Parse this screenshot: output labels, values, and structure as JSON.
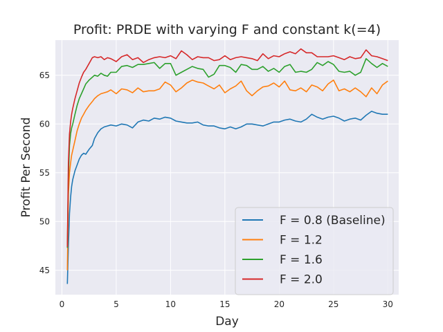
{
  "chart_data": {
    "type": "line",
    "title": "Profit: PRDE with varying F and constant k(=4)",
    "xlabel": "Day",
    "ylabel": "Profit Per Second",
    "xlim": [
      -0.6,
      31.0
    ],
    "ylim": [
      42.5,
      68.6
    ],
    "xticks": [
      0,
      5,
      10,
      15,
      20,
      25,
      30
    ],
    "yticks": [
      45,
      50,
      55,
      60,
      65
    ],
    "grid": true,
    "legend_position": "lower-right",
    "series": [
      {
        "name": "F = 0.8 (Baseline)",
        "color": "#1f77b4",
        "x": [
          0.5,
          0.6,
          0.7,
          0.8,
          0.9,
          1.0,
          1.2,
          1.4,
          1.6,
          1.8,
          2.0,
          2.2,
          2.5,
          2.8,
          3.0,
          3.3,
          3.6,
          3.9,
          4.2,
          4.5,
          5,
          5.5,
          6,
          6.5,
          7,
          7.5,
          8,
          8.5,
          9,
          9.5,
          10,
          10.5,
          11,
          11.5,
          12,
          12.5,
          13,
          13.5,
          14,
          14.5,
          15,
          15.5,
          16,
          16.5,
          17,
          17.5,
          18,
          18.5,
          19,
          19.5,
          20,
          20.5,
          21,
          21.5,
          22,
          22.5,
          23,
          23.5,
          24,
          24.5,
          25,
          25.5,
          26,
          26.5,
          27,
          27.5,
          28,
          28.5,
          29,
          29.5,
          30
        ],
        "values": [
          43.6,
          47.5,
          50.8,
          52.5,
          53.6,
          54.3,
          55.2,
          55.8,
          56.4,
          56.8,
          57.0,
          56.9,
          57.4,
          57.8,
          58.5,
          59.1,
          59.5,
          59.7,
          59.8,
          59.9,
          59.8,
          60.0,
          59.9,
          59.6,
          60.2,
          60.4,
          60.3,
          60.6,
          60.5,
          60.7,
          60.6,
          60.3,
          60.2,
          60.1,
          60.1,
          60.2,
          59.9,
          59.8,
          59.8,
          59.6,
          59.5,
          59.7,
          59.5,
          59.7,
          60.0,
          60.0,
          59.9,
          59.8,
          60.0,
          60.2,
          60.2,
          60.4,
          60.5,
          60.3,
          60.2,
          60.5,
          61.0,
          60.7,
          60.5,
          60.7,
          60.8,
          60.6,
          60.3,
          60.5,
          60.6,
          60.4,
          60.9,
          61.3,
          61.1,
          61.0,
          61.0
        ]
      },
      {
        "name": "F = 1.2",
        "color": "#ff7f0e",
        "x": [
          0.5,
          0.6,
          0.7,
          0.8,
          0.9,
          1.0,
          1.2,
          1.4,
          1.6,
          1.8,
          2.0,
          2.2,
          2.5,
          2.8,
          3.0,
          3.3,
          3.6,
          3.9,
          4.2,
          4.5,
          5,
          5.5,
          6,
          6.5,
          7,
          7.5,
          8,
          8.5,
          9,
          9.5,
          10,
          10.5,
          11,
          11.5,
          12,
          12.5,
          13,
          13.5,
          14,
          14.5,
          15,
          15.5,
          16,
          16.5,
          17,
          17.5,
          18,
          18.5,
          19,
          19.5,
          20,
          20.5,
          21,
          21.5,
          22,
          22.5,
          23,
          23.5,
          24,
          24.5,
          25,
          25.5,
          26,
          26.5,
          27,
          27.5,
          28,
          28.5,
          29,
          29.5,
          30
        ],
        "values": [
          45.0,
          52.8,
          55.0,
          56.0,
          56.8,
          57.3,
          58.3,
          59.3,
          60.0,
          60.6,
          61.0,
          61.4,
          61.9,
          62.3,
          62.6,
          62.9,
          63.1,
          63.2,
          63.3,
          63.5,
          63.1,
          63.6,
          63.5,
          63.2,
          63.7,
          63.3,
          63.4,
          63.4,
          63.6,
          64.3,
          64.0,
          63.3,
          63.7,
          64.2,
          64.5,
          64.3,
          64.2,
          63.9,
          63.6,
          64.0,
          63.2,
          63.6,
          63.9,
          64.4,
          63.4,
          62.9,
          63.4,
          63.8,
          63.9,
          64.2,
          63.8,
          64.4,
          63.5,
          63.4,
          63.7,
          63.3,
          64.0,
          63.8,
          63.4,
          64.1,
          64.5,
          63.4,
          63.6,
          63.3,
          63.7,
          63.3,
          62.8,
          63.7,
          63.1,
          64.0,
          64.4
        ]
      },
      {
        "name": "F = 1.6",
        "color": "#2ca02c",
        "x": [
          0.5,
          0.6,
          0.7,
          0.8,
          0.9,
          1.0,
          1.2,
          1.4,
          1.6,
          1.8,
          2.0,
          2.2,
          2.5,
          2.8,
          3.0,
          3.3,
          3.6,
          3.9,
          4.2,
          4.5,
          5,
          5.5,
          6,
          6.5,
          7,
          7.5,
          8,
          8.5,
          9,
          9.5,
          10,
          10.5,
          11,
          11.5,
          12,
          12.5,
          13,
          13.5,
          14,
          14.5,
          15,
          15.5,
          16,
          16.5,
          17,
          17.5,
          18,
          18.5,
          19,
          19.5,
          20,
          20.5,
          21,
          21.5,
          22,
          22.5,
          23,
          23.5,
          24,
          24.5,
          25,
          25.5,
          26,
          26.5,
          27,
          27.5,
          28,
          28.5,
          29,
          29.5,
          30
        ],
        "values": [
          47.3,
          54.5,
          57.8,
          59.0,
          59.6,
          60.0,
          61.0,
          61.9,
          62.6,
          63.1,
          63.6,
          64.1,
          64.5,
          64.8,
          65.0,
          64.9,
          65.2,
          65.0,
          64.9,
          65.3,
          65.3,
          65.9,
          66.0,
          65.8,
          66.1,
          66.1,
          66.2,
          66.3,
          65.7,
          66.2,
          66.2,
          65.0,
          65.3,
          65.6,
          65.9,
          65.7,
          65.6,
          64.8,
          65.1,
          66.0,
          66.0,
          65.8,
          65.3,
          66.1,
          66.0,
          65.6,
          65.6,
          65.9,
          65.4,
          65.7,
          65.3,
          65.9,
          66.1,
          65.3,
          65.4,
          65.3,
          65.6,
          66.3,
          66.0,
          66.4,
          66.1,
          65.4,
          65.3,
          65.4,
          65.0,
          65.3,
          66.7,
          66.2,
          65.8,
          66.2,
          65.9
        ]
      },
      {
        "name": "F = 2.0",
        "color": "#d62728",
        "x": [
          0.5,
          0.6,
          0.7,
          0.8,
          0.9,
          1.0,
          1.2,
          1.4,
          1.6,
          1.8,
          2.0,
          2.2,
          2.5,
          2.8,
          3.0,
          3.3,
          3.6,
          3.9,
          4.2,
          4.5,
          5,
          5.5,
          6,
          6.5,
          7,
          7.5,
          8,
          8.5,
          9,
          9.5,
          10,
          10.5,
          11,
          11.5,
          12,
          12.5,
          13,
          13.5,
          14,
          14.5,
          15,
          15.5,
          16,
          16.5,
          17,
          17.5,
          18,
          18.5,
          19,
          19.5,
          20,
          20.5,
          21,
          21.5,
          22,
          22.5,
          23,
          23.5,
          24,
          24.5,
          25,
          25.5,
          26,
          26.5,
          27,
          27.5,
          28,
          28.5,
          29,
          29.5,
          30
        ],
        "values": [
          47.4,
          56.0,
          59.0,
          60.2,
          61.0,
          61.6,
          62.6,
          63.4,
          64.2,
          64.8,
          65.3,
          65.6,
          66.2,
          66.8,
          66.9,
          66.8,
          66.9,
          66.6,
          66.8,
          66.7,
          66.4,
          66.9,
          67.1,
          66.6,
          66.8,
          66.3,
          66.6,
          66.8,
          66.9,
          66.8,
          67.0,
          66.7,
          67.5,
          67.1,
          66.6,
          66.9,
          66.8,
          66.8,
          66.5,
          66.6,
          67.0,
          66.6,
          66.8,
          66.9,
          66.8,
          66.7,
          66.5,
          67.2,
          66.7,
          67.0,
          66.9,
          67.2,
          67.4,
          67.2,
          67.7,
          67.3,
          67.3,
          66.9,
          66.9,
          66.9,
          67.0,
          66.8,
          66.6,
          66.9,
          66.7,
          66.8,
          67.6,
          67.0,
          66.9,
          66.7,
          66.5
        ]
      }
    ]
  }
}
